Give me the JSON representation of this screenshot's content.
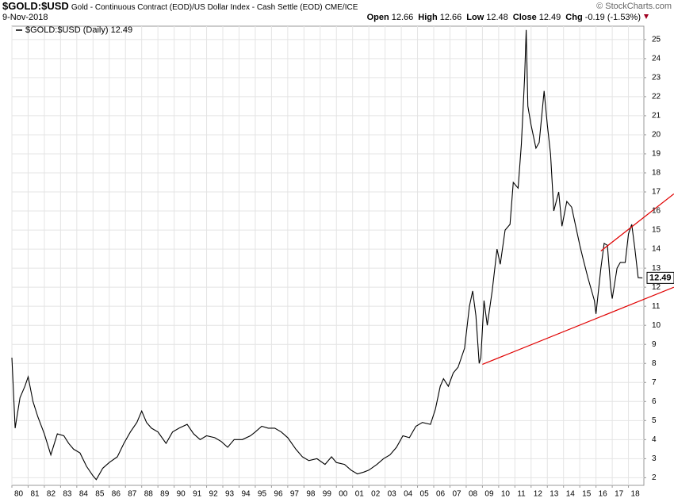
{
  "header": {
    "symbol": "$GOLD:$USD",
    "description": "Gold - Continuous Contract (EOD)/US Dollar Index - Cash Settle (EOD)",
    "exchange": "CME/ICE",
    "date": "9-Nov-2018",
    "credit": "© StockCharts.com",
    "stats": [
      {
        "label": "Open",
        "value": "12.66"
      },
      {
        "label": "High",
        "value": "12.66"
      },
      {
        "label": "Low",
        "value": "12.48"
      },
      {
        "label": "Close",
        "value": "12.49"
      },
      {
        "label": "Chg",
        "value": "-0.19 (-1.53%)"
      }
    ]
  },
  "chart_data": {
    "type": "line",
    "x": [
      1980.0,
      1980.2,
      1980.5,
      1980.8,
      1981.0,
      1981.3,
      1981.6,
      1982.0,
      1982.4,
      1982.8,
      1983.2,
      1983.5,
      1983.8,
      1984.2,
      1984.6,
      1985.0,
      1985.2,
      1985.6,
      1986.0,
      1986.5,
      1986.9,
      1987.3,
      1987.7,
      1988.0,
      1988.3,
      1988.6,
      1989.0,
      1989.5,
      1989.9,
      1990.3,
      1990.8,
      1991.2,
      1991.6,
      1992.0,
      1992.5,
      1992.9,
      1993.3,
      1993.7,
      1994.2,
      1994.7,
      1995.0,
      1995.4,
      1995.8,
      1996.2,
      1996.6,
      1997.0,
      1997.5,
      1997.9,
      1998.3,
      1998.8,
      1999.3,
      1999.7,
      2000.0,
      2000.5,
      2000.9,
      2001.3,
      2001.7,
      2002.0,
      2002.5,
      2002.9,
      2003.3,
      2003.7,
      2004.1,
      2004.5,
      2004.9,
      2005.3,
      2005.8,
      2006.1,
      2006.4,
      2006.6,
      2006.9,
      2007.2,
      2007.5,
      2007.9,
      2008.2,
      2008.4,
      2008.6,
      2008.8,
      2008.9,
      2009.1,
      2009.3,
      2009.6,
      2009.9,
      2010.1,
      2010.4,
      2010.7,
      2010.9,
      2011.2,
      2011.4,
      2011.6,
      2011.7,
      2011.8,
      2012.0,
      2012.3,
      2012.5,
      2012.8,
      2013.0,
      2013.2,
      2013.4,
      2013.7,
      2013.9,
      2014.2,
      2014.5,
      2014.8,
      2015.0,
      2015.2,
      2015.5,
      2015.9,
      2016.0,
      2016.3,
      2016.5,
      2016.7,
      2016.9,
      2017.0,
      2017.3,
      2017.5,
      2017.8,
      2018.0,
      2018.2,
      2018.4,
      2018.6,
      2018.86
    ],
    "series": [
      {
        "name": "$GOLD:$USD (Daily) 12.49",
        "color": "#000000",
        "values": [
          8.3,
          4.6,
          6.2,
          6.8,
          7.3,
          6.0,
          5.2,
          4.3,
          3.2,
          4.3,
          4.2,
          3.8,
          3.5,
          3.3,
          2.6,
          2.1,
          1.9,
          2.5,
          2.8,
          3.1,
          3.8,
          4.4,
          4.9,
          5.5,
          4.9,
          4.6,
          4.4,
          3.8,
          4.4,
          4.6,
          4.8,
          4.3,
          4.0,
          4.2,
          4.1,
          3.9,
          3.6,
          4.0,
          4.0,
          4.2,
          4.4,
          4.7,
          4.6,
          4.6,
          4.4,
          4.1,
          3.5,
          3.1,
          2.9,
          3.0,
          2.7,
          3.1,
          2.8,
          2.7,
          2.4,
          2.2,
          2.3,
          2.4,
          2.7,
          3.0,
          3.2,
          3.6,
          4.2,
          4.1,
          4.7,
          4.9,
          4.8,
          5.6,
          6.8,
          7.2,
          6.8,
          7.5,
          7.8,
          8.8,
          11.0,
          11.8,
          10.5,
          8.0,
          8.3,
          11.3,
          10.0,
          11.8,
          14.0,
          13.2,
          15.0,
          15.3,
          17.5,
          17.2,
          19.5,
          23.0,
          25.5,
          21.5,
          20.5,
          19.3,
          19.6,
          22.3,
          20.5,
          19.0,
          16.0,
          17.0,
          15.2,
          16.5,
          16.2,
          15.0,
          14.2,
          13.5,
          12.5,
          11.3,
          10.6,
          13.0,
          14.3,
          14.2,
          12.0,
          11.4,
          13.0,
          13.3,
          13.3,
          14.8,
          15.3,
          14.0,
          12.5,
          12.49
        ]
      }
    ],
    "trend_lines": [
      {
        "color": "#e00000",
        "x": [
          2009.0,
          2020.8
        ],
        "y": [
          7.95,
          12.0
        ]
      },
      {
        "color": "#e00000",
        "x": [
          2016.3,
          2020.8
        ],
        "y": [
          13.9,
          16.9
        ]
      }
    ],
    "xlim": [
      1980,
      2018.95
    ],
    "xticks": [
      {
        "value": 1980,
        "label": "80"
      },
      {
        "value": 1981,
        "label": "81"
      },
      {
        "value": 1982,
        "label": "82"
      },
      {
        "value": 1983,
        "label": "83"
      },
      {
        "value": 1984,
        "label": "84"
      },
      {
        "value": 1985,
        "label": "85"
      },
      {
        "value": 1986,
        "label": "86"
      },
      {
        "value": 1987,
        "label": "87"
      },
      {
        "value": 1988,
        "label": "88"
      },
      {
        "value": 1989,
        "label": "89"
      },
      {
        "value": 1990,
        "label": "90"
      },
      {
        "value": 1991,
        "label": "91"
      },
      {
        "value": 1992,
        "label": "92"
      },
      {
        "value": 1993,
        "label": "93"
      },
      {
        "value": 1994,
        "label": "94"
      },
      {
        "value": 1995,
        "label": "95"
      },
      {
        "value": 1996,
        "label": "96"
      },
      {
        "value": 1997,
        "label": "97"
      },
      {
        "value": 1998,
        "label": "98"
      },
      {
        "value": 1999,
        "label": "99"
      },
      {
        "value": 2000,
        "label": "00"
      },
      {
        "value": 2001,
        "label": "01"
      },
      {
        "value": 2002,
        "label": "02"
      },
      {
        "value": 2003,
        "label": "03"
      },
      {
        "value": 2004,
        "label": "04"
      },
      {
        "value": 2005,
        "label": "05"
      },
      {
        "value": 2006,
        "label": "06"
      },
      {
        "value": 2007,
        "label": "07"
      },
      {
        "value": 2008,
        "label": "08"
      },
      {
        "value": 2009,
        "label": "09"
      },
      {
        "value": 2010,
        "label": "10"
      },
      {
        "value": 2011,
        "label": "11"
      },
      {
        "value": 2012,
        "label": "12"
      },
      {
        "value": 2013,
        "label": "13"
      },
      {
        "value": 2014,
        "label": "14"
      },
      {
        "value": 2015,
        "label": "15"
      },
      {
        "value": 2016,
        "label": "16"
      },
      {
        "value": 2017,
        "label": "17"
      },
      {
        "value": 2018,
        "label": "18"
      }
    ],
    "ylim": [
      1.6,
      25.7
    ],
    "yticks": [
      2,
      3,
      4,
      5,
      6,
      7,
      8,
      9,
      10,
      11,
      12,
      13,
      14,
      15,
      16,
      17,
      18,
      19,
      20,
      21,
      22,
      23,
      24,
      25
    ],
    "grid": true
  }
}
